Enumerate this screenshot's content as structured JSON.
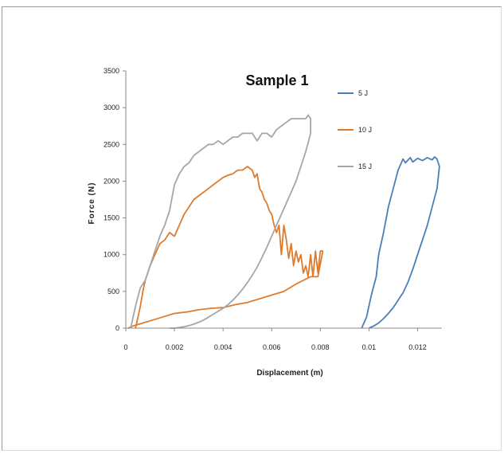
{
  "chart_data": {
    "type": "line",
    "title": "Sample 1",
    "xlabel": "Displacement (m)",
    "ylabel": "Force (N)",
    "xlim": [
      0,
      0.013
    ],
    "ylim": [
      0,
      3500
    ],
    "xticks": [
      "0",
      "0.002",
      "0.004",
      "0.006",
      "0.008",
      "0.01",
      "0.012"
    ],
    "xtick_values": [
      0,
      0.002,
      0.004,
      0.006,
      0.008,
      0.01,
      0.012
    ],
    "yticks": [
      "0",
      "500",
      "1000",
      "1500",
      "2000",
      "2500",
      "3000",
      "3500"
    ],
    "ytick_values": [
      0,
      500,
      1000,
      1500,
      2000,
      2500,
      3000,
      3500
    ],
    "grid": false,
    "legend": "right",
    "series": [
      {
        "name": "5 J",
        "color": "#4a7ebb",
        "x": [
          0.0097,
          0.0099,
          0.0101,
          0.0103,
          0.0104,
          0.0106,
          0.0108,
          0.011,
          0.0112,
          0.0114,
          0.0115,
          0.0117,
          0.0118,
          0.012,
          0.0122,
          0.0124,
          0.0126,
          0.0127,
          0.0128,
          0.0129,
          0.0128,
          0.0126,
          0.0124,
          0.0122,
          0.012,
          0.0118,
          0.0116,
          0.0114,
          0.0112,
          0.011,
          0.0108,
          0.0106,
          0.0104,
          0.0102,
          0.01
        ],
        "y": [
          0,
          150,
          450,
          700,
          1000,
          1300,
          1650,
          1900,
          2150,
          2300,
          2250,
          2320,
          2260,
          2310,
          2280,
          2320,
          2290,
          2330,
          2300,
          2200,
          1900,
          1650,
          1400,
          1200,
          1000,
          800,
          620,
          480,
          380,
          280,
          200,
          130,
          70,
          30,
          0
        ]
      },
      {
        "name": "10 J",
        "color": "#e07b2b",
        "x": [
          0.0004,
          0.0005,
          0.0006,
          0.0007,
          0.0008,
          0.001,
          0.0012,
          0.0014,
          0.0016,
          0.0018,
          0.002,
          0.0022,
          0.0024,
          0.0026,
          0.0028,
          0.003,
          0.0032,
          0.0034,
          0.0036,
          0.0038,
          0.004,
          0.0042,
          0.0044,
          0.0046,
          0.0048,
          0.005,
          0.0052,
          0.0053,
          0.0054,
          0.0055,
          0.0056,
          0.0057,
          0.0058,
          0.0059,
          0.006,
          0.0061,
          0.0062,
          0.0063,
          0.0064,
          0.0065,
          0.0066,
          0.0067,
          0.0068,
          0.0069,
          0.007,
          0.0071,
          0.0072,
          0.0073,
          0.0074,
          0.0075,
          0.0076,
          0.0077,
          0.0078,
          0.0079,
          0.008,
          0.0081,
          0.0079,
          0.0076,
          0.0073,
          0.007,
          0.0065,
          0.006,
          0.0055,
          0.005,
          0.0045,
          0.004,
          0.0035,
          0.003,
          0.0025,
          0.002,
          0.0015,
          0.001,
          0.0006,
          0.0003,
          0.0001
        ],
        "y": [
          0,
          150,
          300,
          500,
          650,
          850,
          1000,
          1150,
          1200,
          1300,
          1250,
          1400,
          1550,
          1650,
          1750,
          1800,
          1850,
          1900,
          1950,
          2000,
          2050,
          2080,
          2100,
          2150,
          2150,
          2200,
          2150,
          2050,
          2100,
          1900,
          1850,
          1750,
          1700,
          1600,
          1550,
          1400,
          1300,
          1400,
          1000,
          1400,
          1200,
          950,
          1150,
          850,
          1050,
          900,
          1000,
          750,
          850,
          700,
          1000,
          700,
          1050,
          750,
          1050,
          1050,
          700,
          700,
          650,
          600,
          500,
          450,
          400,
          350,
          320,
          280,
          270,
          250,
          220,
          200,
          150,
          100,
          60,
          30,
          0
        ]
      },
      {
        "name": "15 J",
        "color": "#a6a6a6",
        "x": [
          0.0002,
          0.0004,
          0.0006,
          0.0008,
          0.001,
          0.0012,
          0.0014,
          0.0016,
          0.0018,
          0.002,
          0.0022,
          0.0024,
          0.0026,
          0.0028,
          0.003,
          0.0032,
          0.0034,
          0.0036,
          0.0038,
          0.004,
          0.0042,
          0.0044,
          0.0046,
          0.0048,
          0.005,
          0.0052,
          0.0054,
          0.0056,
          0.0058,
          0.006,
          0.0062,
          0.0064,
          0.0066,
          0.0068,
          0.007,
          0.0072,
          0.0074,
          0.0075,
          0.0076,
          0.0076,
          0.0074,
          0.0072,
          0.007,
          0.0068,
          0.0066,
          0.0064,
          0.0062,
          0.006,
          0.0058,
          0.0056,
          0.0054,
          0.0052,
          0.005,
          0.0048,
          0.0046,
          0.0044,
          0.0042,
          0.004,
          0.0038,
          0.0036,
          0.0034,
          0.0032,
          0.003,
          0.0028,
          0.0026,
          0.0024,
          0.0022,
          0.002,
          0.0018
        ],
        "y": [
          0,
          300,
          550,
          650,
          850,
          1050,
          1250,
          1400,
          1600,
          1950,
          2100,
          2200,
          2250,
          2350,
          2400,
          2450,
          2500,
          2500,
          2550,
          2500,
          2550,
          2600,
          2600,
          2650,
          2650,
          2650,
          2550,
          2650,
          2650,
          2600,
          2700,
          2750,
          2800,
          2850,
          2850,
          2850,
          2850,
          2900,
          2850,
          2650,
          2400,
          2200,
          2000,
          1850,
          1700,
          1550,
          1400,
          1250,
          1100,
          960,
          830,
          720,
          620,
          530,
          450,
          380,
          320,
          270,
          230,
          190,
          150,
          110,
          80,
          55,
          35,
          20,
          10,
          0,
          0
        ]
      }
    ]
  }
}
